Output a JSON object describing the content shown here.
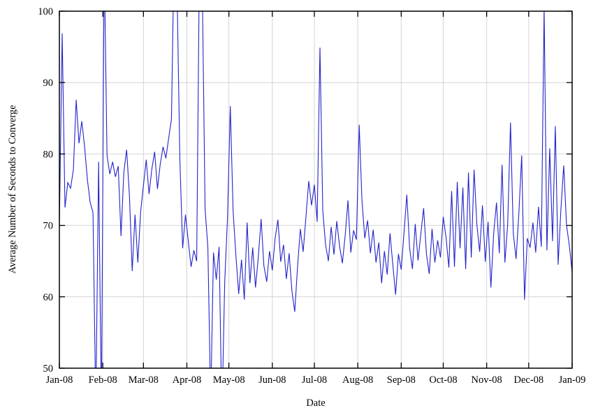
{
  "page": {
    "background": "#ffffff"
  },
  "chart_data": {
    "type": "line",
    "title": "",
    "xlabel": "Date",
    "ylabel": "Average Number of Seconds to Converge",
    "ylim": [
      50,
      100
    ],
    "y_ticks": [
      50,
      60,
      70,
      80,
      90,
      100
    ],
    "x_range_days": [
      0,
      366
    ],
    "x_ticks": [
      {
        "label": "Jan-08",
        "day": 0
      },
      {
        "label": "Feb-08",
        "day": 31
      },
      {
        "label": "Mar-08",
        "day": 60
      },
      {
        "label": "Apr-08",
        "day": 91
      },
      {
        "label": "May-08",
        "day": 121
      },
      {
        "label": "Jun-08",
        "day": 152
      },
      {
        "label": "Jul-08",
        "day": 182
      },
      {
        "label": "Aug-08",
        "day": 213
      },
      {
        "label": "Sep-08",
        "day": 244
      },
      {
        "label": "Oct-08",
        "day": 274
      },
      {
        "label": "Nov-08",
        "day": 305
      },
      {
        "label": "Dec-08",
        "day": 335
      },
      {
        "label": "Jan-09",
        "day": 366
      }
    ],
    "grid": true,
    "legend": "none",
    "colors": {
      "line": "#2323cd",
      "axis": "#000000",
      "grid": "#d4d4d4",
      "background": "#ffffff"
    },
    "series": [
      {
        "name": "average-seconds-to-converge",
        "x_step_days": 2,
        "values": [
          69.9,
          96.9,
          72.5,
          76.0,
          75.2,
          77.8,
          87.6,
          81.5,
          84.6,
          81.0,
          76.4,
          73.2,
          71.8,
          44.0,
          78.9,
          43.5,
          107.5,
          79.8,
          77.2,
          78.9,
          76.8,
          78.3,
          68.5,
          77.4,
          80.6,
          74.2,
          63.6,
          71.5,
          64.8,
          71.9,
          75.6,
          79.2,
          74.4,
          77.9,
          80.3,
          75.1,
          78.6,
          81.0,
          79.4,
          82.2,
          84.9,
          110.0,
          103.0,
          79.2,
          66.8,
          71.5,
          67.8,
          64.2,
          66.5,
          65.0,
          108.0,
          103.5,
          72.3,
          66.9,
          45.0,
          66.2,
          62.4,
          67.0,
          43.0,
          62.0,
          71.0,
          86.7,
          72.0,
          65.8,
          60.4,
          65.2,
          59.6,
          70.4,
          61.9,
          66.9,
          61.3,
          65.6,
          70.9,
          64.3,
          62.1,
          66.4,
          63.7,
          68.2,
          70.8,
          64.9,
          67.3,
          62.5,
          66.1,
          60.8,
          57.9,
          64.2,
          69.5,
          66.3,
          71.2,
          76.2,
          72.8,
          75.7,
          70.5,
          94.9,
          72.1,
          67.3,
          65.0,
          69.8,
          65.9,
          70.6,
          67.1,
          64.7,
          68.6,
          73.5,
          66.2,
          69.3,
          68.0,
          84.1,
          73.4,
          68.2,
          70.7,
          66.1,
          69.4,
          64.8,
          67.6,
          61.9,
          66.4,
          63.1,
          68.9,
          64.5,
          60.3,
          66.0,
          63.8,
          69.0,
          74.3,
          66.8,
          63.9,
          70.2,
          65.1,
          68.8,
          72.4,
          66.0,
          63.2,
          69.5,
          64.8,
          67.9,
          65.5,
          71.2,
          68.3,
          64.1,
          74.8,
          64.2,
          76.1,
          66.8,
          75.3,
          63.9,
          77.4,
          65.5,
          77.8,
          70.1,
          66.3,
          72.8,
          64.9,
          70.5,
          61.3,
          68.9,
          73.2,
          66.1,
          78.5,
          64.8,
          70.2,
          84.4,
          68.9,
          65.3,
          71.8,
          79.8,
          59.6,
          68.2,
          66.9,
          70.4,
          66.2,
          72.6,
          67.0,
          100.5,
          66.5,
          80.8,
          67.8,
          83.9,
          64.5,
          72.3,
          78.4,
          70.0,
          67.2,
          63.4
        ]
      }
    ]
  }
}
